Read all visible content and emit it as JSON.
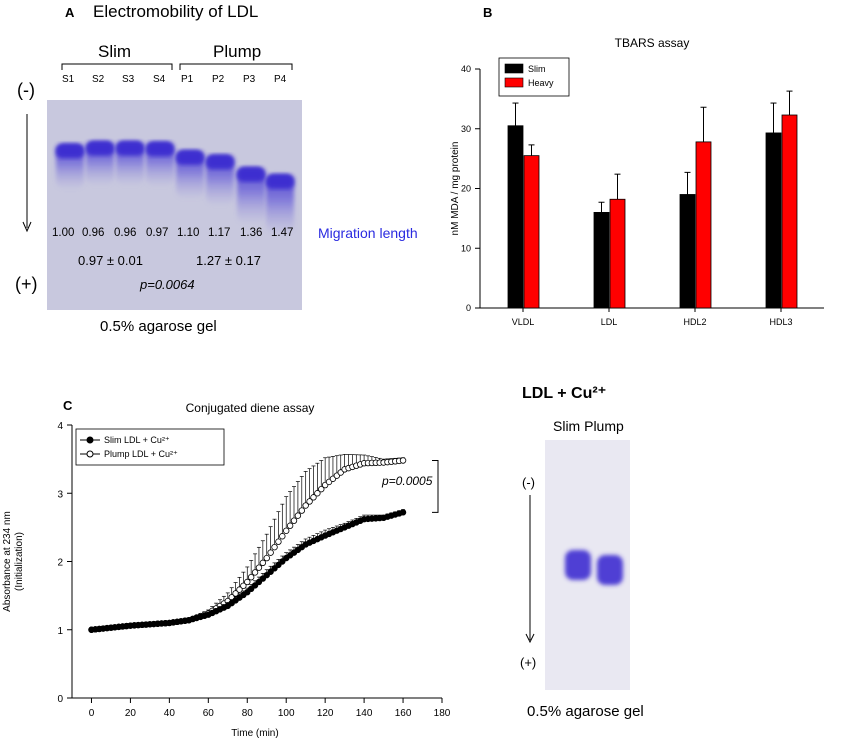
{
  "panelA": {
    "label": "A",
    "title": "Electromobility of LDL",
    "groups": [
      "Slim",
      "Plump"
    ],
    "lanes": [
      "S1",
      "S2",
      "S3",
      "S4",
      "P1",
      "P2",
      "P3",
      "P4"
    ],
    "neg": "(-)",
    "pos": "(+)",
    "migration_values": [
      "1.00",
      "0.96",
      "0.96",
      "0.97",
      "1.10",
      "1.17",
      "1.36",
      "1.47"
    ],
    "migration_label": "Migration length",
    "slim_mean": "0.97 ± 0.01",
    "plump_mean": "1.27 ± 0.17",
    "p_value": "p=0.0064",
    "caption": "0.5% agarose gel",
    "band_color": "#3d2fd0"
  },
  "panelC_gel": {
    "title": "LDL + Cu²⁺",
    "lanes_label": "Slim Plump",
    "neg": "(-)",
    "pos": "(+)",
    "caption": "0.5% agarose gel",
    "band_color": "#3d2fd0"
  },
  "chart_data": [
    {
      "panel": "B",
      "type": "bar",
      "title": "TBARS assay",
      "ylabel": "nM MDA / mg protein",
      "xlabel": "",
      "ylim": [
        0,
        40
      ],
      "yticks": [
        0,
        10,
        20,
        30,
        40
      ],
      "categories": [
        "VLDL",
        "LDL",
        "HDL2",
        "HDL3"
      ],
      "series": [
        {
          "name": "Slim",
          "color": "#000000",
          "values": [
            30.5,
            16.0,
            19.0,
            29.3
          ],
          "errors": [
            3.8,
            1.7,
            3.7,
            5.0
          ]
        },
        {
          "name": "Heavy",
          "color": "#ff0000",
          "values": [
            25.5,
            18.2,
            27.8,
            32.3
          ],
          "errors": [
            1.8,
            4.2,
            5.8,
            4.0
          ]
        }
      ],
      "legend": "top-left"
    },
    {
      "panel": "C",
      "type": "line",
      "title": "Conjugated diene assay",
      "xlabel": "Time (min)",
      "ylabel": "Absorbance at 234 nm (Initialization)",
      "xlim": [
        -10,
        180
      ],
      "ylim": [
        0,
        4
      ],
      "xticks": [
        0,
        20,
        40,
        60,
        80,
        100,
        120,
        140,
        160,
        180
      ],
      "yticks": [
        0,
        1,
        2,
        3,
        4
      ],
      "annotation": "p=0.0005",
      "series": [
        {
          "name": "Slim LDL + Cu²⁺",
          "marker": "filled-circle",
          "x": [
            0,
            10,
            20,
            30,
            40,
            50,
            60,
            70,
            80,
            90,
            100,
            110,
            120,
            130,
            140,
            150,
            160
          ],
          "y": [
            1.0,
            1.03,
            1.06,
            1.08,
            1.1,
            1.14,
            1.22,
            1.35,
            1.55,
            1.8,
            2.05,
            2.25,
            2.38,
            2.5,
            2.62,
            2.64,
            2.72
          ],
          "err": [
            0.01,
            0.01,
            0.01,
            0.01,
            0.01,
            0.02,
            0.03,
            0.05,
            0.06,
            0.08,
            0.08,
            0.08,
            0.08,
            0.06,
            0.06,
            0.04,
            0.04
          ]
        },
        {
          "name": "Plump LDL + Cu²⁺",
          "marker": "open-circle",
          "x": [
            0,
            10,
            20,
            30,
            40,
            50,
            60,
            70,
            80,
            90,
            100,
            110,
            120,
            130,
            140,
            150,
            160
          ],
          "y": [
            1.0,
            1.03,
            1.06,
            1.08,
            1.1,
            1.14,
            1.24,
            1.42,
            1.7,
            2.05,
            2.45,
            2.82,
            3.12,
            3.35,
            3.44,
            3.45,
            3.48
          ],
          "err": [
            0.01,
            0.01,
            0.01,
            0.01,
            0.01,
            0.02,
            0.05,
            0.12,
            0.22,
            0.35,
            0.5,
            0.5,
            0.4,
            0.22,
            0.12,
            0.05,
            0.04
          ]
        }
      ],
      "legend": "top-left"
    }
  ]
}
